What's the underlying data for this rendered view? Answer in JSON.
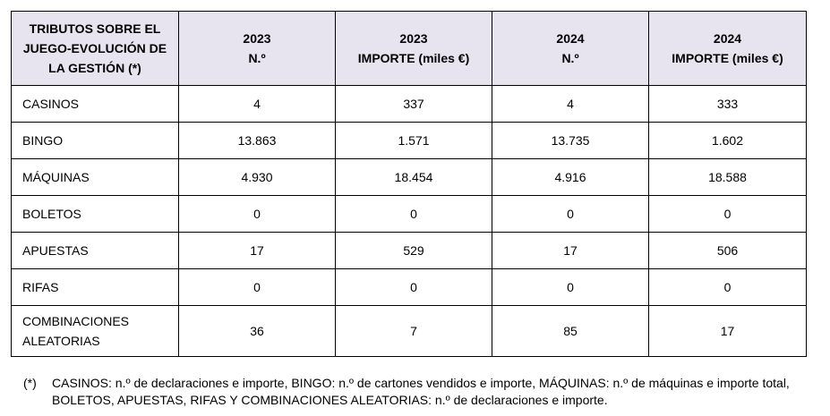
{
  "table": {
    "header": {
      "title_lines": [
        "TRIBUTOS SOBRE EL",
        "JUEGO-EVOLUCIÓN DE",
        "LA GESTIÓN (*)"
      ],
      "columns": [
        {
          "year": "2023",
          "sub": "N.º"
        },
        {
          "year": "2023",
          "sub": "IMPORTE (miles €)"
        },
        {
          "year": "2024",
          "sub": "N.º"
        },
        {
          "year": "2024",
          "sub": "IMPORTE (miles €)"
        }
      ]
    },
    "rows": [
      {
        "label": "CASINOS",
        "values": [
          "4",
          "337",
          "4",
          "333"
        ]
      },
      {
        "label": "BINGO",
        "values": [
          "13.863",
          "1.571",
          "13.735",
          "1.602"
        ]
      },
      {
        "label": "MÁQUINAS",
        "values": [
          "4.930",
          "18.454",
          "4.916",
          "18.588"
        ]
      },
      {
        "label": "BOLETOS",
        "values": [
          "0",
          "0",
          "0",
          "0"
        ]
      },
      {
        "label": "APUESTAS",
        "values": [
          "17",
          "529",
          "17",
          "506"
        ]
      },
      {
        "label": "RIFAS",
        "values": [
          "0",
          "0",
          "0",
          "0"
        ]
      }
    ],
    "last_row": {
      "label_lines": [
        "COMBINACIONES",
        "ALEATORIAS"
      ],
      "values": [
        "36",
        "7",
        "85",
        "17"
      ]
    }
  },
  "footnote": {
    "mark": "(*)",
    "lines": [
      "CASINOS: n.º de declaraciones e importe, BINGO: n.º de cartones vendidos e importe, MÁQUINAS: n.º de máquinas e importe total,",
      "BOLETOS, APUESTAS, RIFAS Y COMBINACIONES ALEATORIAS: n.º de declaraciones e importe."
    ]
  }
}
